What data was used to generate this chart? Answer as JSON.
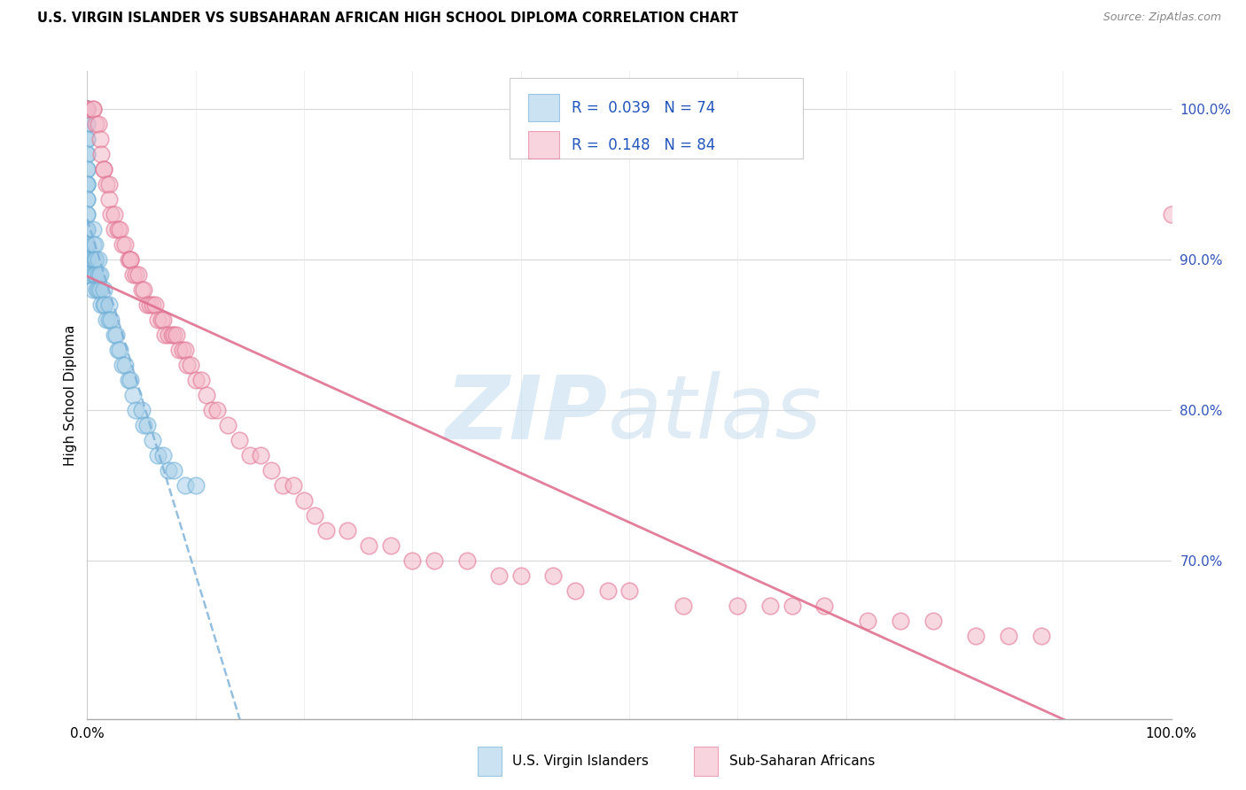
{
  "title": "U.S. VIRGIN ISLANDER VS SUBSAHARAN AFRICAN HIGH SCHOOL DIPLOMA CORRELATION CHART",
  "source": "Source: ZipAtlas.com",
  "ylabel": "High School Diploma",
  "blue_color": "#a8cfe8",
  "pink_color": "#f4b8c8",
  "blue_edge": "#6aadd5",
  "pink_edge": "#e07090",
  "blue_line_color": "#7ab0d8",
  "pink_line_color": "#e06880",
  "watermark_zip": "ZIP",
  "watermark_atlas": "atlas",
  "legend_blue": "R =  0.039   N = 74",
  "legend_pink": "R =  0.148   N = 84",
  "label_blue": "U.S. Virgin Islanders",
  "label_pink": "Sub-Saharan Africans",
  "blue_x": [
    0.0,
    0.0,
    0.0,
    0.0,
    0.0,
    0.0,
    0.0,
    0.0,
    0.0,
    0.0,
    0.0,
    0.0,
    0.0,
    0.0,
    0.0,
    0.0,
    0.0,
    0.0,
    0.0,
    0.0,
    0.0,
    0.0,
    0.0,
    0.0,
    0.0,
    0.0,
    0.0,
    0.0,
    0.0,
    0.0,
    0.005,
    0.005,
    0.005,
    0.005,
    0.005,
    0.007,
    0.007,
    0.007,
    0.008,
    0.008,
    0.009,
    0.01,
    0.01,
    0.01,
    0.012,
    0.012,
    0.013,
    0.015,
    0.015,
    0.016,
    0.018,
    0.02,
    0.02,
    0.022,
    0.025,
    0.027,
    0.028,
    0.03,
    0.032,
    0.035,
    0.038,
    0.04,
    0.042,
    0.045,
    0.05,
    0.052,
    0.055,
    0.06,
    0.065,
    0.07,
    0.075,
    0.08,
    0.09,
    0.1
  ],
  "blue_y": [
    1.0,
    1.0,
    1.0,
    0.99,
    0.99,
    0.98,
    0.98,
    0.97,
    0.97,
    0.96,
    0.96,
    0.95,
    0.95,
    0.95,
    0.94,
    0.94,
    0.93,
    0.93,
    0.92,
    0.92,
    0.92,
    0.91,
    0.91,
    0.91,
    0.9,
    0.9,
    0.9,
    0.89,
    0.89,
    0.89,
    0.92,
    0.91,
    0.9,
    0.89,
    0.88,
    0.91,
    0.9,
    0.89,
    0.9,
    0.89,
    0.88,
    0.9,
    0.89,
    0.88,
    0.89,
    0.88,
    0.87,
    0.88,
    0.87,
    0.87,
    0.86,
    0.87,
    0.86,
    0.86,
    0.85,
    0.85,
    0.84,
    0.84,
    0.83,
    0.83,
    0.82,
    0.82,
    0.81,
    0.8,
    0.8,
    0.79,
    0.79,
    0.78,
    0.77,
    0.77,
    0.76,
    0.76,
    0.75,
    0.75
  ],
  "pink_x": [
    0.0,
    0.0,
    0.005,
    0.005,
    0.008,
    0.01,
    0.012,
    0.013,
    0.015,
    0.015,
    0.018,
    0.02,
    0.02,
    0.022,
    0.025,
    0.025,
    0.028,
    0.03,
    0.032,
    0.035,
    0.038,
    0.04,
    0.04,
    0.042,
    0.045,
    0.047,
    0.05,
    0.052,
    0.055,
    0.058,
    0.06,
    0.063,
    0.065,
    0.068,
    0.07,
    0.072,
    0.075,
    0.078,
    0.08,
    0.082,
    0.085,
    0.088,
    0.09,
    0.092,
    0.095,
    0.1,
    0.105,
    0.11,
    0.115,
    0.12,
    0.13,
    0.14,
    0.15,
    0.16,
    0.17,
    0.18,
    0.19,
    0.2,
    0.21,
    0.22,
    0.24,
    0.26,
    0.28,
    0.3,
    0.32,
    0.35,
    0.38,
    0.4,
    0.43,
    0.45,
    0.48,
    0.5,
    0.55,
    0.6,
    0.63,
    0.65,
    0.68,
    0.72,
    0.75,
    0.78,
    0.82,
    0.85,
    0.88,
    1.0
  ],
  "pink_y": [
    1.0,
    1.0,
    1.0,
    1.0,
    0.99,
    0.99,
    0.98,
    0.97,
    0.96,
    0.96,
    0.95,
    0.95,
    0.94,
    0.93,
    0.93,
    0.92,
    0.92,
    0.92,
    0.91,
    0.91,
    0.9,
    0.9,
    0.9,
    0.89,
    0.89,
    0.89,
    0.88,
    0.88,
    0.87,
    0.87,
    0.87,
    0.87,
    0.86,
    0.86,
    0.86,
    0.85,
    0.85,
    0.85,
    0.85,
    0.85,
    0.84,
    0.84,
    0.84,
    0.83,
    0.83,
    0.82,
    0.82,
    0.81,
    0.8,
    0.8,
    0.79,
    0.78,
    0.77,
    0.77,
    0.76,
    0.75,
    0.75,
    0.74,
    0.73,
    0.72,
    0.72,
    0.71,
    0.71,
    0.7,
    0.7,
    0.7,
    0.69,
    0.69,
    0.69,
    0.68,
    0.68,
    0.68,
    0.67,
    0.67,
    0.67,
    0.67,
    0.67,
    0.66,
    0.66,
    0.66,
    0.65,
    0.65,
    0.65,
    0.93
  ]
}
